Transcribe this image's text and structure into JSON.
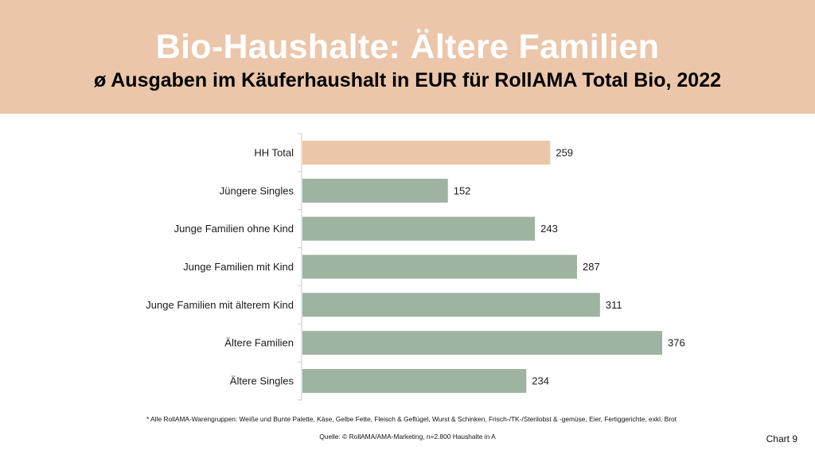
{
  "header": {
    "title": "Bio-Haushalte: Ältere Familien",
    "subtitle": "ø Ausgaben im Käuferhaushalt in EUR für RollAMA Total Bio, 2022"
  },
  "chart_data": {
    "type": "bar",
    "orientation": "horizontal",
    "title": "Bio-Haushalte: Ältere Familien",
    "subtitle": "ø Ausgaben im Käuferhaushalt in EUR für RollAMA Total Bio, 2022",
    "xlabel": "",
    "ylabel": "",
    "categories": [
      "HH Total",
      "Jüngere Singles",
      "Junge Familien ohne Kind",
      "Junge Familien mit Kind",
      "Junge Familien mit älterem Kind",
      "Ältere Familien",
      "Ältere Singles"
    ],
    "values": [
      259,
      152,
      243,
      287,
      311,
      376,
      234
    ],
    "unit": "EUR",
    "xlim": [
      0,
      400
    ],
    "grid": false,
    "legend": "none",
    "colors": {
      "highlight": "#EBC6A9",
      "default": "#9EB3A0"
    },
    "highlight_index": 0
  },
  "footer": {
    "footnote": "* Alle RollAMA-Warengruppen: Weiße und Bunte Palette, Käse, Gelbe Fette, Fleisch & Geflügel, Wurst & Schinken, Frisch-/TK-/Sterilobst & -gemüse,  Eier,  Fertiggerichte, exkl. Brot",
    "source": "Quelle: © RollAMA/AMA-Marketing, n=2.800 Haushalte in A",
    "chart_number": "Chart 9"
  }
}
